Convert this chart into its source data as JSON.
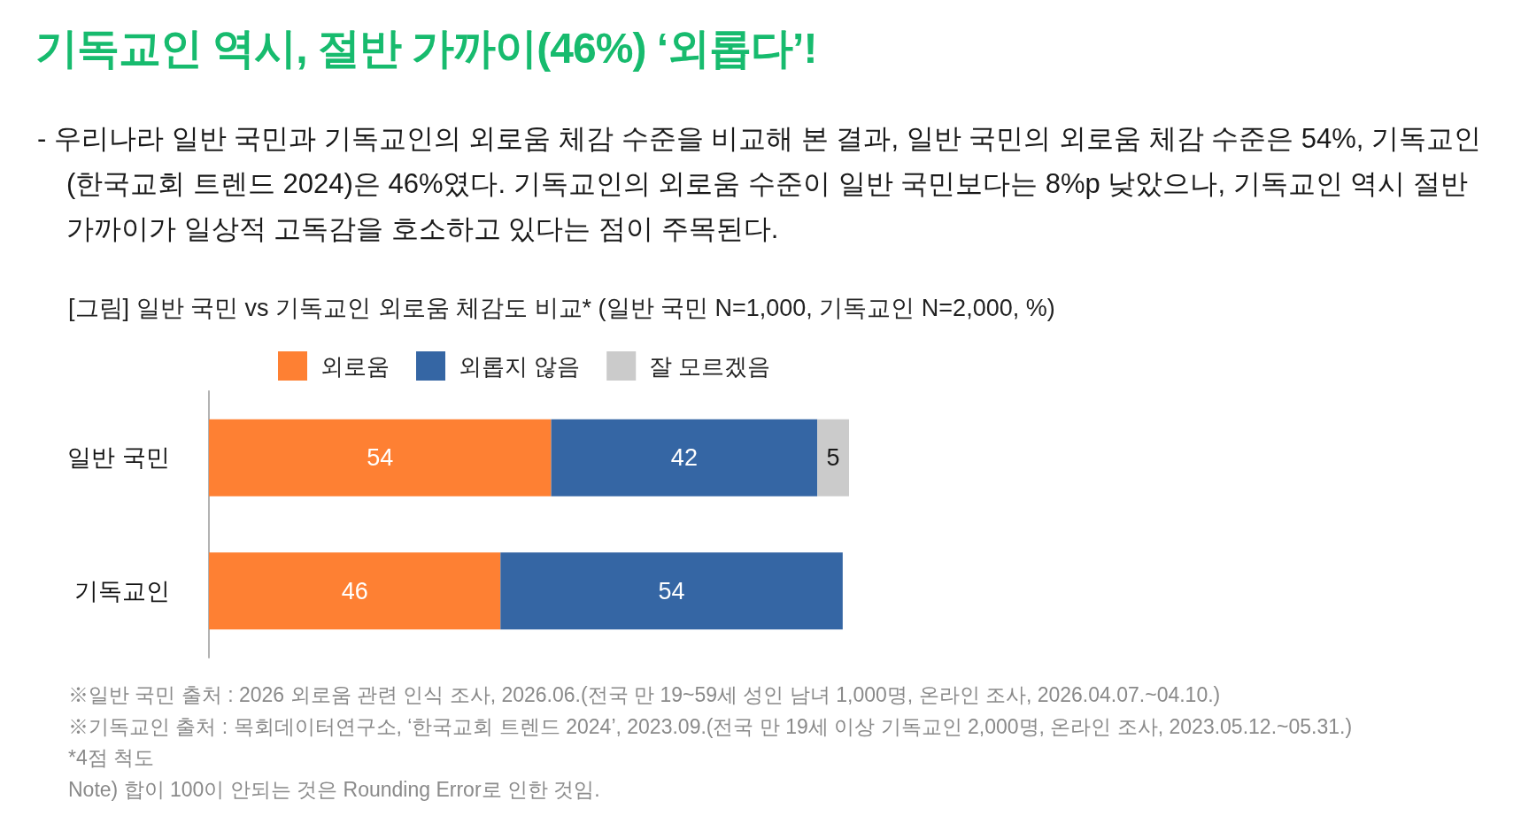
{
  "chart_data": {
    "type": "bar",
    "orientation": "horizontal",
    "stacked": true,
    "title": "기독교인 역시, 절반 가까이(46%) ‘외롭다’!",
    "subtitle": "- 우리나라 일반 국민과 기독교인의 외로움 체감 수준을 비교해 본 결과, 일반 국민의 외로움 체감 수준은 54%, 기독교인(한국교회 트렌드 2024)은 46%였다. 기독교인의 외로움 수준이 일반 국민보다는 8%p 낮았으나, 기독교인 역시 절반 가까이가 일상적 고독감을 호소하고 있다는 점이 주목된다.",
    "categories": [
      "일반 국민",
      "기독교인"
    ],
    "series": [
      {
        "name": "외로움",
        "color": "#fe8033",
        "values": [
          54,
          46
        ]
      },
      {
        "name": "외롭지 않음",
        "color": "#3566a4",
        "values": [
          42,
          54
        ]
      },
      {
        "name": "잘 모르겠음",
        "color": "#cbcbcb",
        "values": [
          5,
          null
        ]
      }
    ],
    "xlim": [
      0,
      101
    ],
    "data_labels": true,
    "legend": "top",
    "tick_labels": "y",
    "annotations": [
      "[그림] 일반 국민 vs 기독교인 외로움 체감도 비교* (일반 국민 N=1,000, 기독교인 N=2,000, %)",
      "※일반 국민 출처 : 2026 외로움 관련 인식 조사, 2026.06.(전국 만 19~59세 성인 남녀 1,000명, 온라인 조사, 2026.04.07.~04.10.)",
      "※기독교인 출처 : 목회데이터연구소, ‘한국교회 트렌드 2024’, 2023.09.(전국 만 19세 이상 기독교인 2,000명, 온라인 조사, 2023.05.12.~05.31.)",
      "*4점 척도",
      "Note) 합이 100이 안되는 것은 Rounding Error로 인한 것임."
    ]
  }
}
